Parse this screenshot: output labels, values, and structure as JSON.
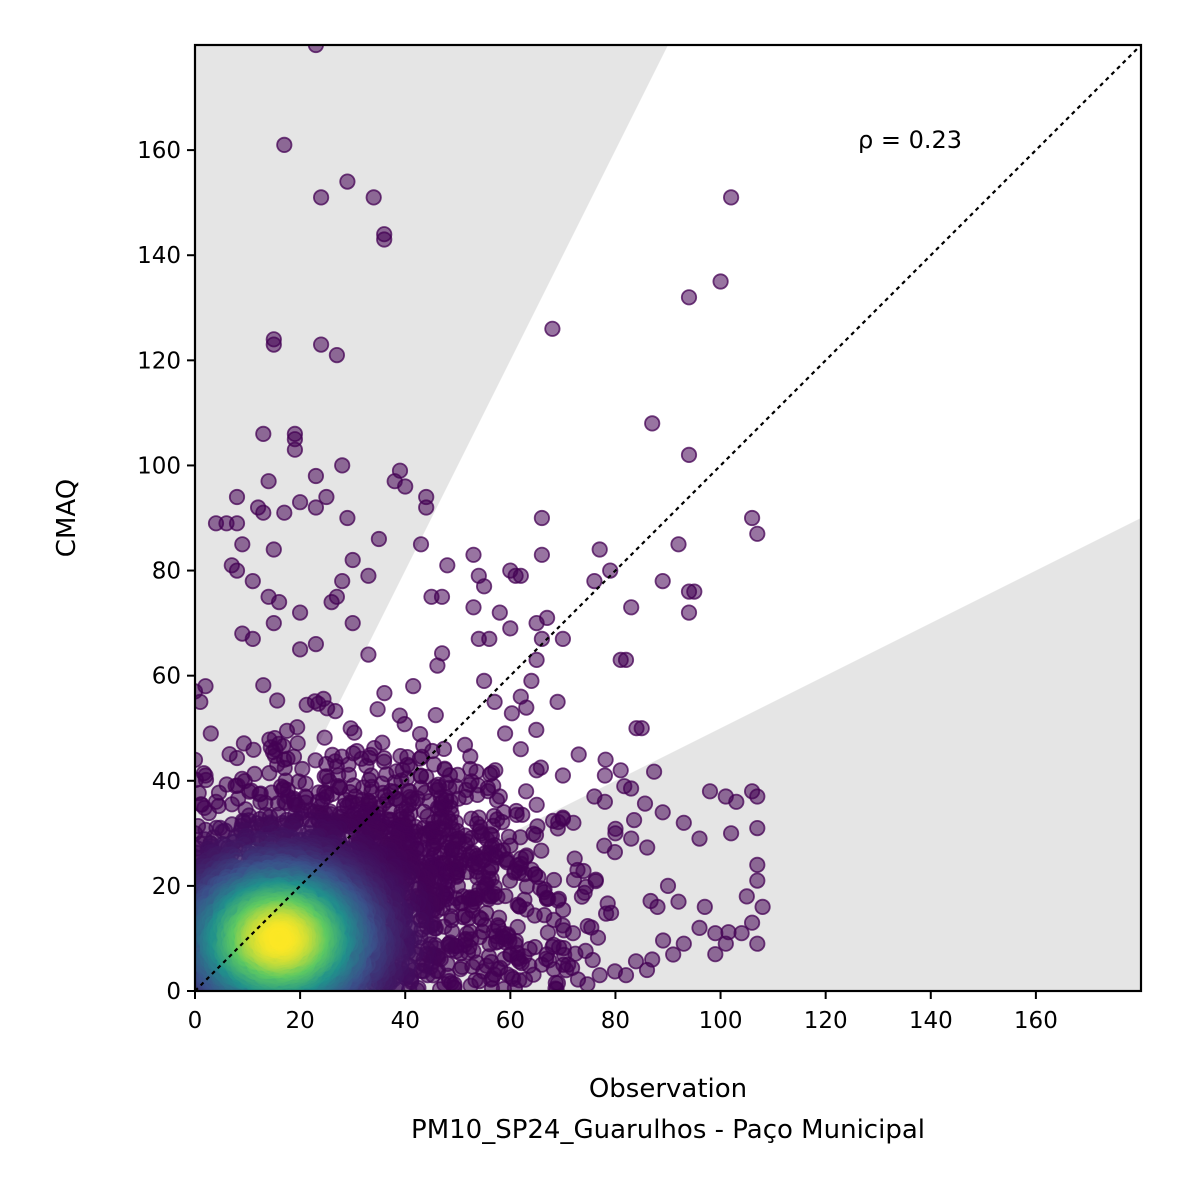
{
  "chart_data": {
    "type": "scatter",
    "xlabel": "Observation",
    "xlabel_sub": "PM10_SP24_Guarulhos - Paço Municipal",
    "ylabel": "CMAQ",
    "xlim": [
      0,
      180
    ],
    "ylim": [
      0,
      180
    ],
    "x_ticks": [
      0,
      20,
      40,
      60,
      80,
      100,
      120,
      140,
      160
    ],
    "y_ticks": [
      0,
      20,
      40,
      60,
      80,
      100,
      120,
      140,
      160
    ],
    "annotation": {
      "text": "ρ = 0.23",
      "x": 126,
      "y": 160
    },
    "reference_line": {
      "type": "1:1",
      "style": "dotted",
      "color": "#000000"
    },
    "shaded_regions": {
      "color": "#e5e5e5",
      "upper_slope": 2.0,
      "lower_slope": 0.5
    },
    "color_by": "point density",
    "colormap": [
      "#440154",
      "#3b528b",
      "#21918c",
      "#5ec962",
      "#fde725"
    ],
    "point_alpha": 0.55,
    "outlier_points": [
      [
        23,
        180
      ],
      [
        17,
        161
      ],
      [
        29,
        154
      ],
      [
        34,
        151
      ],
      [
        24,
        151
      ],
      [
        36,
        144
      ],
      [
        36,
        143
      ],
      [
        102,
        151
      ],
      [
        94,
        132
      ],
      [
        100,
        135
      ],
      [
        68,
        126
      ],
      [
        15,
        124
      ],
      [
        15,
        123
      ],
      [
        24,
        123
      ],
      [
        27,
        121
      ],
      [
        87,
        108
      ],
      [
        13,
        106
      ],
      [
        19,
        106
      ],
      [
        19,
        105
      ],
      [
        19,
        103
      ],
      [
        94,
        102
      ],
      [
        28,
        100
      ],
      [
        39,
        99
      ],
      [
        23,
        98
      ],
      [
        38,
        97
      ],
      [
        14,
        97
      ],
      [
        40,
        96
      ],
      [
        8,
        94
      ],
      [
        25,
        94
      ],
      [
        44,
        94
      ],
      [
        12,
        92
      ],
      [
        20,
        93
      ],
      [
        13,
        91
      ],
      [
        17,
        91
      ],
      [
        23,
        92
      ],
      [
        29,
        90
      ],
      [
        66,
        90
      ],
      [
        106,
        90
      ],
      [
        107,
        87
      ],
      [
        4,
        89
      ],
      [
        6,
        89
      ],
      [
        8,
        89
      ],
      [
        44,
        92
      ],
      [
        92,
        85
      ],
      [
        53,
        83
      ],
      [
        66,
        83
      ],
      [
        77,
        84
      ],
      [
        35,
        86
      ],
      [
        43,
        85
      ],
      [
        9,
        85
      ],
      [
        15,
        84
      ],
      [
        30,
        82
      ],
      [
        76,
        78
      ],
      [
        79,
        80
      ],
      [
        89,
        78
      ],
      [
        7,
        81
      ],
      [
        8,
        80
      ],
      [
        11,
        78
      ],
      [
        48,
        81
      ],
      [
        54,
        79
      ],
      [
        55,
        77
      ],
      [
        60,
        80
      ],
      [
        61,
        79
      ],
      [
        62,
        79
      ],
      [
        94,
        76
      ],
      [
        95,
        76
      ],
      [
        28,
        78
      ],
      [
        33,
        79
      ],
      [
        14,
        75
      ],
      [
        16,
        74
      ],
      [
        20,
        72
      ],
      [
        26,
        74
      ],
      [
        27,
        75
      ],
      [
        45,
        75
      ],
      [
        47,
        75
      ],
      [
        58,
        72
      ],
      [
        53,
        73
      ],
      [
        83,
        73
      ],
      [
        94,
        72
      ],
      [
        65,
        70
      ],
      [
        67,
        71
      ],
      [
        66,
        67
      ],
      [
        70,
        67
      ],
      [
        56,
        67
      ],
      [
        54,
        67
      ],
      [
        60,
        69
      ],
      [
        15,
        70
      ],
      [
        30,
        70
      ],
      [
        9,
        68
      ],
      [
        11,
        67
      ],
      [
        20,
        65
      ],
      [
        23,
        66
      ],
      [
        33,
        64
      ],
      [
        81,
        63
      ],
      [
        82,
        63
      ],
      [
        65,
        63
      ],
      [
        62,
        56
      ],
      [
        64,
        59
      ],
      [
        69,
        55
      ],
      [
        55,
        59
      ],
      [
        57,
        55
      ],
      [
        84,
        50
      ],
      [
        85,
        50
      ],
      [
        59,
        49
      ],
      [
        62,
        46
      ],
      [
        65,
        42
      ],
      [
        70,
        41
      ],
      [
        73,
        45
      ],
      [
        78,
        41
      ],
      [
        81,
        42
      ],
      [
        76,
        37
      ],
      [
        78,
        36
      ],
      [
        63,
        38
      ],
      [
        58,
        37
      ],
      [
        54,
        33
      ],
      [
        70,
        33
      ],
      [
        72,
        32
      ],
      [
        80,
        30
      ],
      [
        83,
        29
      ],
      [
        89,
        34
      ],
      [
        93,
        32
      ],
      [
        98,
        38
      ],
      [
        101,
        37
      ],
      [
        103,
        36
      ],
      [
        106,
        38
      ],
      [
        107,
        37
      ],
      [
        96,
        29
      ],
      [
        102,
        30
      ],
      [
        107,
        31
      ],
      [
        107,
        24
      ],
      [
        107,
        21
      ],
      [
        105,
        18
      ],
      [
        108,
        16
      ],
      [
        107,
        9
      ],
      [
        106,
        13
      ],
      [
        101,
        9
      ],
      [
        99,
        11
      ],
      [
        96,
        12
      ],
      [
        93,
        9
      ],
      [
        87,
        6
      ],
      [
        86,
        4
      ],
      [
        82,
        3
      ],
      [
        77,
        3
      ],
      [
        71,
        5
      ],
      [
        66,
        5
      ],
      [
        60,
        7
      ],
      [
        90,
        20
      ],
      [
        88,
        16
      ],
      [
        92,
        17
      ],
      [
        97,
        16
      ],
      [
        99,
        7
      ],
      [
        104,
        11
      ],
      [
        0,
        57
      ],
      [
        2,
        58
      ],
      [
        1,
        55
      ],
      [
        3,
        49
      ],
      [
        0,
        44
      ],
      [
        2,
        41
      ],
      [
        4,
        36
      ],
      [
        0,
        30
      ],
      [
        1,
        28
      ],
      [
        2,
        24
      ],
      [
        0,
        20
      ]
    ],
    "core_point_count": 3800
  }
}
